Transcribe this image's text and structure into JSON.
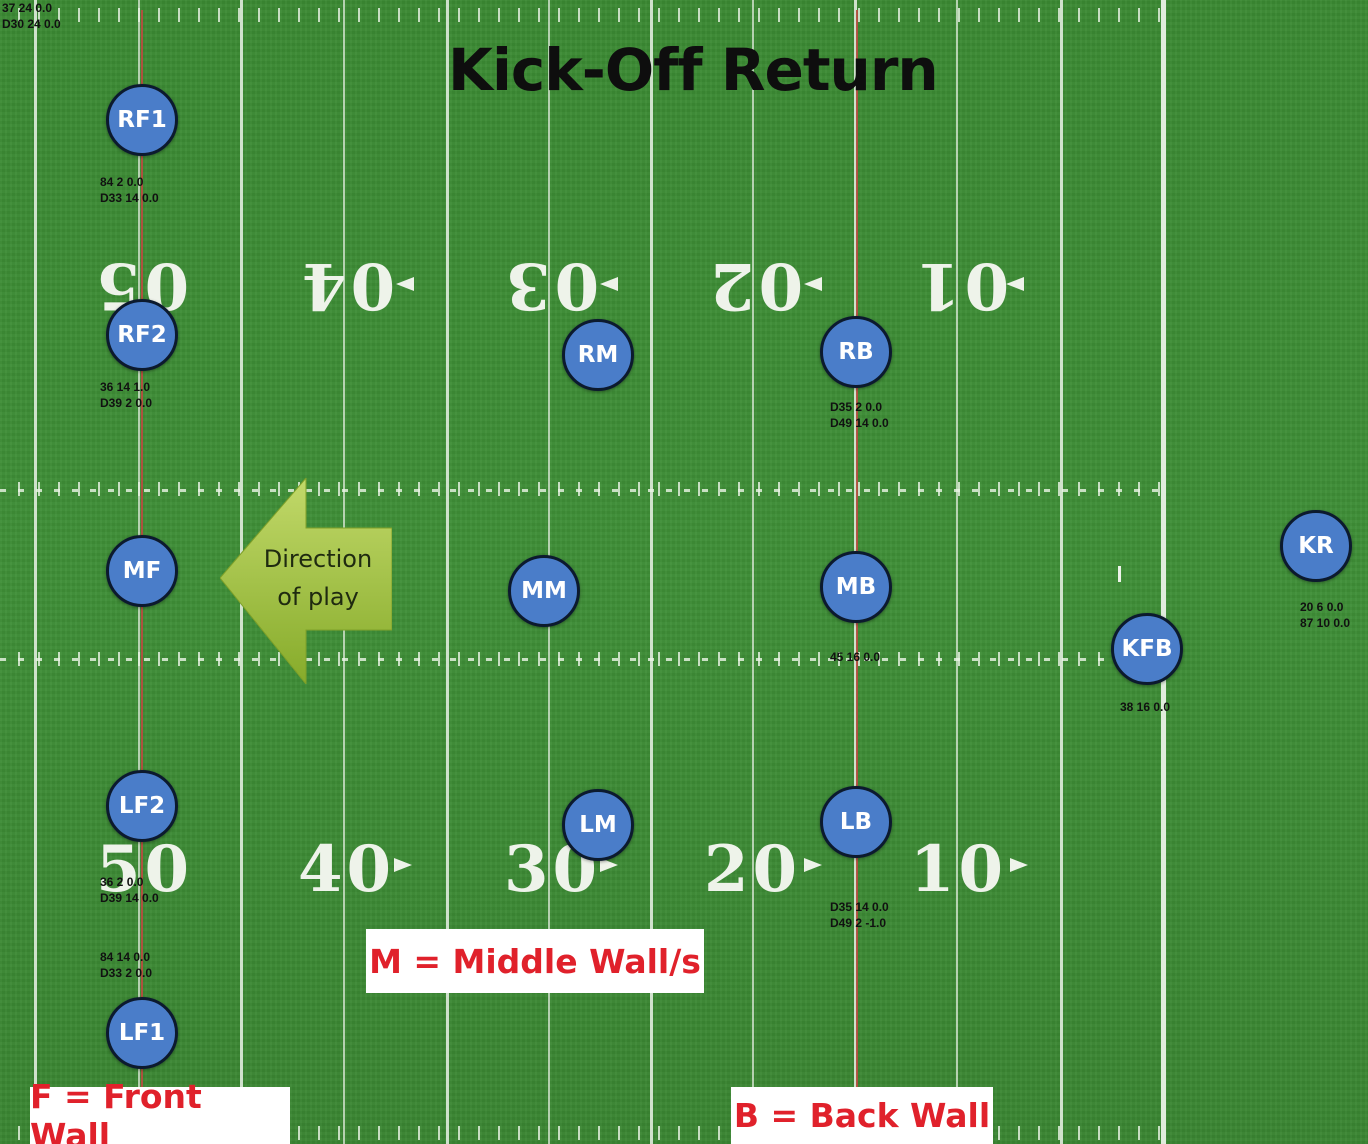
{
  "title": "Kick-Off Return",
  "direction_label": [
    "Direction",
    "of play"
  ],
  "yard_numbers_top": [
    "5",
    "0",
    "4",
    "0",
    "3",
    "0",
    "2",
    "0",
    "1",
    "0"
  ],
  "yard_numbers_bottom": [
    "5",
    "0",
    "4",
    "0",
    "3",
    "0",
    "2",
    "0",
    "1",
    "0"
  ],
  "players": [
    {
      "id": "RF1",
      "label": "RF1"
    },
    {
      "id": "RF2",
      "label": "RF2"
    },
    {
      "id": "RM",
      "label": "RM"
    },
    {
      "id": "RB",
      "label": "RB"
    },
    {
      "id": "MF",
      "label": "MF"
    },
    {
      "id": "MM",
      "label": "MM"
    },
    {
      "id": "MB",
      "label": "MB"
    },
    {
      "id": "KR",
      "label": "KR"
    },
    {
      "id": "KFB",
      "label": "KFB"
    },
    {
      "id": "LF2",
      "label": "LF2"
    },
    {
      "id": "LM",
      "label": "LM"
    },
    {
      "id": "LB",
      "label": "LB"
    },
    {
      "id": "LF1",
      "label": "LF1"
    }
  ],
  "notes": {
    "corner": "37 24 0.0\nD30 24 0.0",
    "rf1": "84 2 0.0\nD33 14 0.0",
    "rf2": "36 14 1.0\nD39 2 0.0",
    "rb": "D35 2 0.0\nD49 14 0.0",
    "mb": "45 16 0.0",
    "kr": "20 6 0.0\n87 10 0.0",
    "kfb": "38 16 0.0",
    "lf2": "36 2 0.0\nD39 14 0.0",
    "lf1": "84 14 0.0\nD33 2 0.0",
    "lb": "D35 14 0.0\nD49 2 -1.0"
  },
  "legend": {
    "middle": "M = Middle Wall/s",
    "front": "F = Front Wall",
    "back": "B = Back Wall"
  },
  "colors": {
    "field": "#3f8a36",
    "player_fill": "#4a7dc9",
    "player_border": "#0c1a2e",
    "legend_text": "#e0212b",
    "arrow": "#9cbf3a"
  }
}
